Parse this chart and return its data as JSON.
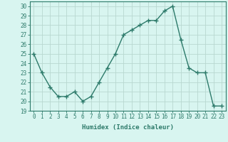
{
  "x": [
    0,
    1,
    2,
    3,
    4,
    5,
    6,
    7,
    8,
    9,
    10,
    11,
    12,
    13,
    14,
    15,
    16,
    17,
    18,
    19,
    20,
    21,
    22,
    23
  ],
  "y": [
    25,
    23,
    21.5,
    20.5,
    20.5,
    21,
    20,
    20.5,
    22,
    23.5,
    25,
    27,
    27.5,
    28,
    28.5,
    28.5,
    29.5,
    30,
    26.5,
    23.5,
    23,
    23,
    19.5,
    19.5
  ],
  "line_color": "#2d7a6a",
  "marker": "+",
  "marker_size": 4,
  "marker_lw": 1.0,
  "bg_color": "#d8f5f0",
  "grid_color": "#b8d8d0",
  "xlabel": "Humidex (Indice chaleur)",
  "xlim": [
    -0.5,
    23.5
  ],
  "ylim": [
    19,
    30.5
  ],
  "yticks": [
    19,
    20,
    21,
    22,
    23,
    24,
    25,
    26,
    27,
    28,
    29,
    30
  ],
  "xticks": [
    0,
    1,
    2,
    3,
    4,
    5,
    6,
    7,
    8,
    9,
    10,
    11,
    12,
    13,
    14,
    15,
    16,
    17,
    18,
    19,
    20,
    21,
    22,
    23
  ],
  "tick_color": "#2d7a6a",
  "label_color": "#2d7a6a",
  "axis_color": "#2d7a6a",
  "tick_fontsize": 5.5,
  "xlabel_fontsize": 6.5,
  "linewidth": 1.0
}
